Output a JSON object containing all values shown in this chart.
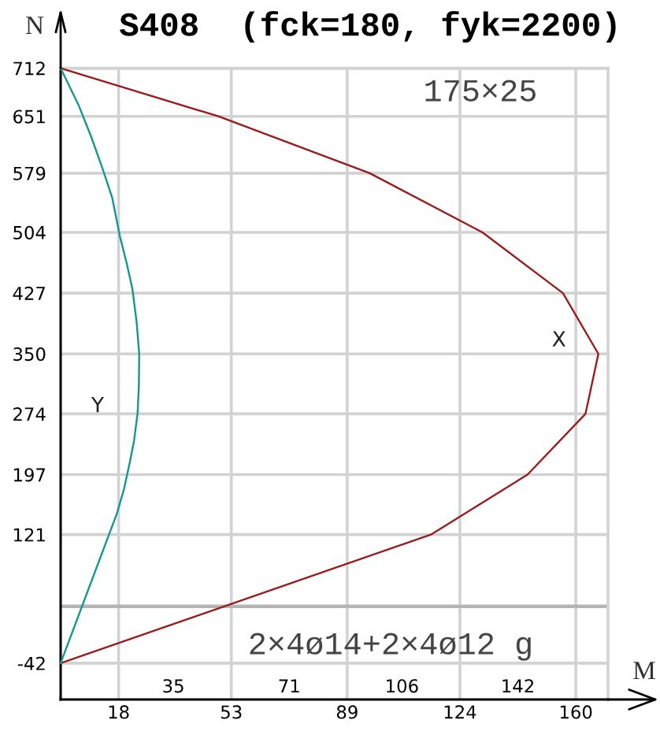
{
  "chart_data": {
    "type": "line",
    "title": "S408  (fck=180, fyk=2200)",
    "xlabel": "M",
    "ylabel": "N",
    "annotations": [
      "175×25",
      "2×4ø14+2×4ø12 g"
    ],
    "xlim": [
      0,
      170
    ],
    "ylim": [
      -88,
      712
    ],
    "xticks": [
      18,
      53,
      89,
      124,
      160
    ],
    "x2lim": [
      0,
      170
    ],
    "x2ticks": [
      35,
      71,
      106,
      142
    ],
    "yticks": [
      -42,
      121,
      197,
      274,
      350,
      427,
      504,
      579,
      651,
      712
    ],
    "grid": true,
    "line_style": "solid",
    "ref_lines": [
      {
        "axis": "y",
        "value": 30,
        "color": "#b4b4b4"
      }
    ],
    "series": [
      {
        "name": "X",
        "color": "#991b1e",
        "x": [
          0,
          49,
          96,
          131,
          156,
          167,
          163,
          145,
          115,
          0
        ],
        "values": [
          712,
          651,
          579,
          504,
          427,
          350,
          274,
          197,
          121,
          -42
        ]
      },
      {
        "name": "Y",
        "color": "#139595",
        "x": [
          0,
          5.6,
          9.5,
          13,
          16,
          18.4,
          20.5,
          22.3,
          23.6,
          24.4,
          24.3,
          23.9,
          22.8,
          21.5,
          19.7,
          17.5,
          0
        ],
        "values": [
          712,
          665,
          625,
          585,
          548,
          499,
          465,
          432,
          390,
          350,
          310,
          275,
          240,
          213,
          179,
          148,
          -42
        ]
      }
    ]
  }
}
